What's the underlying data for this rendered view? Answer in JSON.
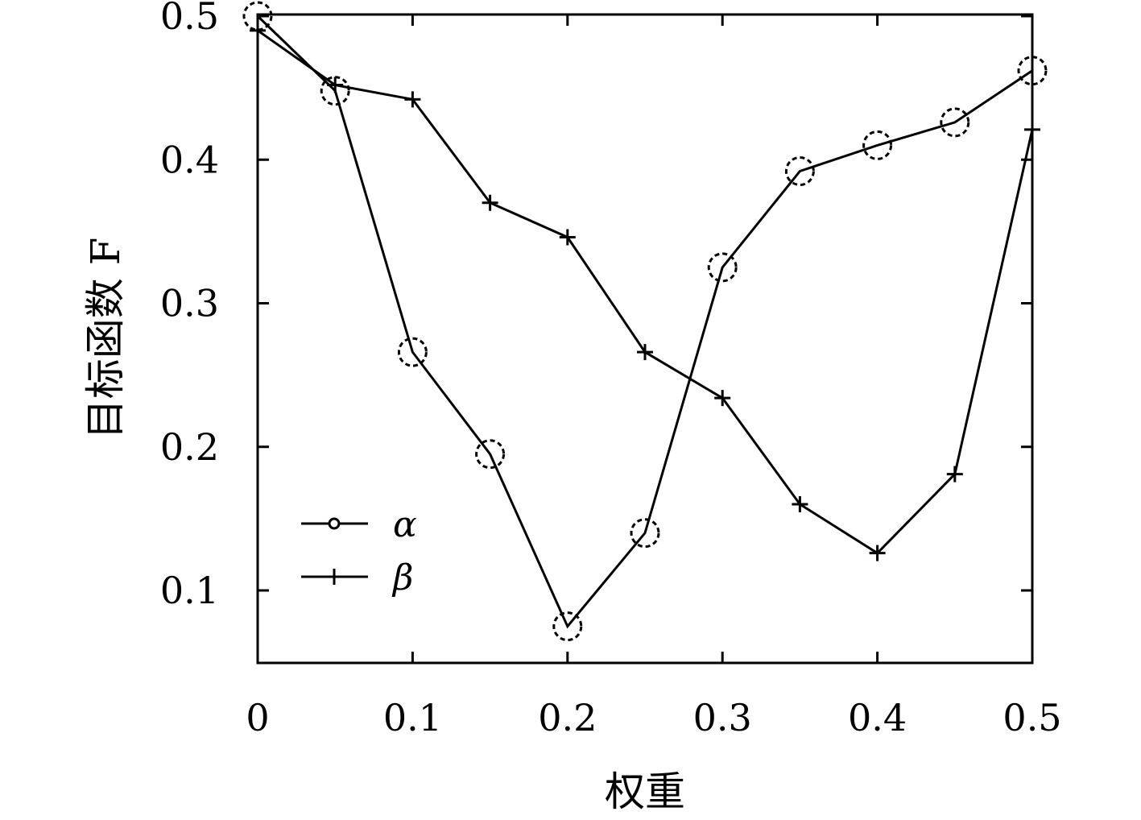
{
  "chart_data": {
    "type": "line",
    "xlabel": "权重",
    "ylabel": "目标函数 F",
    "xlim": [
      0,
      0.5
    ],
    "ylim": [
      0.05,
      0.5
    ],
    "x_ticks": [
      "0",
      "0.1",
      "0.2",
      "0.3",
      "0.4",
      "0.5"
    ],
    "y_ticks": [
      "0.1",
      "0.2",
      "0.3",
      "0.4",
      "0.5"
    ],
    "grid": false,
    "legend_position": "lower-left",
    "series": [
      {
        "name": "α",
        "marker": "circle",
        "x": [
          0,
          0.05,
          0.1,
          0.15,
          0.2,
          0.25,
          0.3,
          0.35,
          0.4,
          0.45,
          0.5
        ],
        "values": [
          0.5,
          0.448,
          0.266,
          0.195,
          0.075,
          0.14,
          0.325,
          0.392,
          0.41,
          0.426,
          0.462
        ]
      },
      {
        "name": "β",
        "marker": "plus",
        "x": [
          0,
          0.05,
          0.1,
          0.15,
          0.2,
          0.25,
          0.3,
          0.35,
          0.4,
          0.45,
          0.5
        ],
        "values": [
          0.49,
          0.452,
          0.442,
          0.37,
          0.346,
          0.266,
          0.234,
          0.16,
          0.126,
          0.181,
          0.421
        ]
      }
    ]
  }
}
